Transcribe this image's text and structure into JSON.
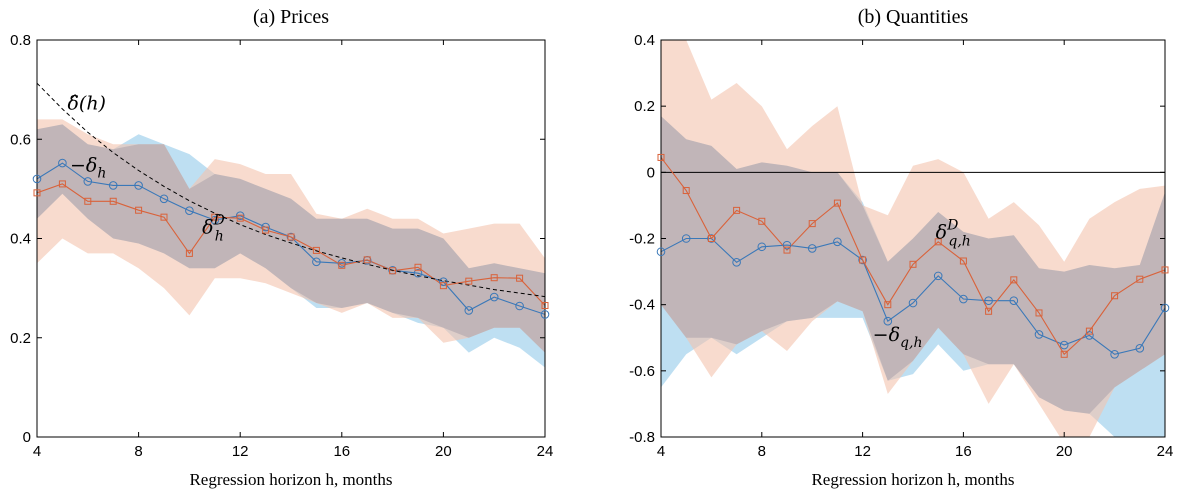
{
  "chart_data": [
    {
      "type": "line",
      "title": "(a) Prices",
      "xlabel": "Regression horizon h, months",
      "ylabel": "",
      "xlim": [
        4,
        24
      ],
      "ylim": [
        0,
        0.8
      ],
      "xticks": [
        4,
        8,
        12,
        16,
        20,
        24
      ],
      "yticks": [
        0,
        0.2,
        0.4,
        0.6,
        0.8
      ],
      "ytick_labels": [
        "0",
        "0.2",
        "0.4",
        "0.6",
        "0.8"
      ],
      "x": [
        4,
        5,
        6,
        7,
        8,
        9,
        10,
        11,
        12,
        13,
        14,
        15,
        16,
        17,
        18,
        19,
        20,
        21,
        22,
        23,
        24
      ],
      "series": [
        {
          "name": "−δ_h",
          "color": "#3a78b8",
          "marker": "circle",
          "values": [
            0.52,
            0.552,
            0.515,
            0.507,
            0.507,
            0.48,
            0.456,
            0.437,
            0.446,
            0.423,
            0.403,
            0.353,
            0.35,
            0.356,
            0.336,
            0.33,
            0.313,
            0.255,
            0.282,
            0.264,
            0.247
          ],
          "band_color": "#a8d4ee",
          "band_lower": [
            0.44,
            0.49,
            0.44,
            0.4,
            0.39,
            0.37,
            0.34,
            0.34,
            0.37,
            0.34,
            0.3,
            0.26,
            0.26,
            0.27,
            0.25,
            0.23,
            0.22,
            0.17,
            0.2,
            0.18,
            0.14
          ],
          "band_upper": [
            0.62,
            0.63,
            0.59,
            0.58,
            0.61,
            0.59,
            0.57,
            0.53,
            0.52,
            0.5,
            0.48,
            0.44,
            0.44,
            0.44,
            0.42,
            0.42,
            0.4,
            0.34,
            0.35,
            0.34,
            0.33
          ]
        },
        {
          "name": "δ_h^D",
          "color": "#d9623a",
          "marker": "square",
          "values": [
            0.492,
            0.51,
            0.475,
            0.475,
            0.457,
            0.443,
            0.37,
            0.443,
            0.441,
            0.417,
            0.403,
            0.376,
            0.346,
            0.357,
            0.335,
            0.342,
            0.305,
            0.314,
            0.321,
            0.32,
            0.265
          ],
          "band_color": "#f4c3ae",
          "band_lower": [
            0.35,
            0.4,
            0.37,
            0.37,
            0.34,
            0.3,
            0.245,
            0.32,
            0.32,
            0.31,
            0.29,
            0.27,
            0.25,
            0.27,
            0.24,
            0.24,
            0.19,
            0.2,
            0.22,
            0.22,
            0.17
          ],
          "band_upper": [
            0.64,
            0.64,
            0.61,
            0.59,
            0.59,
            0.59,
            0.5,
            0.56,
            0.55,
            0.53,
            0.53,
            0.45,
            0.44,
            0.46,
            0.44,
            0.44,
            0.41,
            0.42,
            0.43,
            0.43,
            0.36
          ]
        },
        {
          "name": "δ̂(h)",
          "color": "#000000",
          "style": "dashed",
          "values": [
            0.713,
            0.661,
            0.614,
            0.573,
            0.537,
            0.505,
            0.476,
            0.451,
            0.428,
            0.408,
            0.391,
            0.375,
            0.361,
            0.348,
            0.336,
            0.325,
            0.315,
            0.306,
            0.297,
            0.29,
            0.283
          ]
        }
      ],
      "annotations": [
        {
          "text": "δ̂(h)",
          "x": 5.2,
          "y": 0.66
        },
        {
          "text": "−δ_h",
          "x": 5.3,
          "y": 0.535
        },
        {
          "text": "δ_h^D",
          "x": 10.5,
          "y": 0.41
        }
      ]
    },
    {
      "type": "line",
      "title": "(b) Quantities",
      "xlabel": "Regression horizon h, months",
      "ylabel": "",
      "xlim": [
        4,
        24
      ],
      "ylim": [
        -0.8,
        0.4
      ],
      "xticks": [
        4,
        8,
        12,
        16,
        20,
        24
      ],
      "yticks": [
        -0.8,
        -0.6,
        -0.4,
        -0.2,
        0,
        0.2,
        0.4
      ],
      "ytick_labels": [
        "-0.8",
        "-0.6",
        "-0.4",
        "-0.2",
        "0",
        "0.2",
        "0.4"
      ],
      "hline": 0,
      "x": [
        4,
        5,
        6,
        7,
        8,
        9,
        10,
        11,
        12,
        13,
        14,
        15,
        16,
        17,
        18,
        19,
        20,
        21,
        22,
        23,
        24
      ],
      "series": [
        {
          "name": "−δ_{q,h}",
          "color": "#3a78b8",
          "marker": "circle",
          "values": [
            -0.24,
            -0.2,
            -0.2,
            -0.272,
            -0.225,
            -0.22,
            -0.23,
            -0.21,
            -0.265,
            -0.45,
            -0.395,
            -0.313,
            -0.383,
            -0.388,
            -0.388,
            -0.49,
            -0.522,
            -0.493,
            -0.55,
            -0.532,
            -0.41
          ],
          "band_color": "#a8d4ee",
          "band_lower": [
            -0.65,
            -0.55,
            -0.5,
            -0.55,
            -0.5,
            -0.45,
            -0.44,
            -0.44,
            -0.44,
            -0.63,
            -0.61,
            -0.52,
            -0.6,
            -0.58,
            -0.58,
            -0.68,
            -0.72,
            -0.73,
            -0.8,
            -0.8,
            -0.8
          ],
          "band_upper": [
            0.17,
            0.1,
            0.08,
            0.01,
            0.03,
            0.02,
            0.0,
            0.0,
            -0.09,
            -0.27,
            -0.2,
            -0.12,
            -0.18,
            -0.2,
            -0.19,
            -0.29,
            -0.3,
            -0.28,
            -0.29,
            -0.28,
            -0.06
          ]
        },
        {
          "name": "δ_{q,h}^D",
          "color": "#d9623a",
          "marker": "square",
          "values": [
            0.045,
            -0.055,
            -0.2,
            -0.115,
            -0.148,
            -0.235,
            -0.155,
            -0.093,
            -0.265,
            -0.4,
            -0.278,
            -0.21,
            -0.268,
            -0.42,
            -0.325,
            -0.425,
            -0.55,
            -0.48,
            -0.373,
            -0.323,
            -0.295
          ],
          "band_color": "#f4c3ae",
          "band_lower": [
            -0.4,
            -0.5,
            -0.62,
            -0.52,
            -0.48,
            -0.54,
            -0.45,
            -0.39,
            -0.42,
            -0.67,
            -0.57,
            -0.47,
            -0.55,
            -0.7,
            -0.58,
            -0.7,
            -0.82,
            -0.8,
            -0.65,
            -0.6,
            -0.55
          ],
          "band_upper": [
            0.48,
            0.4,
            0.22,
            0.27,
            0.2,
            0.07,
            0.14,
            0.2,
            -0.1,
            -0.13,
            0.02,
            0.04,
            0.0,
            -0.14,
            -0.09,
            -0.16,
            -0.27,
            -0.14,
            -0.09,
            -0.05,
            -0.04
          ]
        }
      ],
      "annotations": [
        {
          "text": "δ_{q,h}^D",
          "x": 14.9,
          "y": -0.2
        },
        {
          "text": "−δ_{q,h}",
          "x": 12.4,
          "y": -0.51
        }
      ]
    }
  ]
}
